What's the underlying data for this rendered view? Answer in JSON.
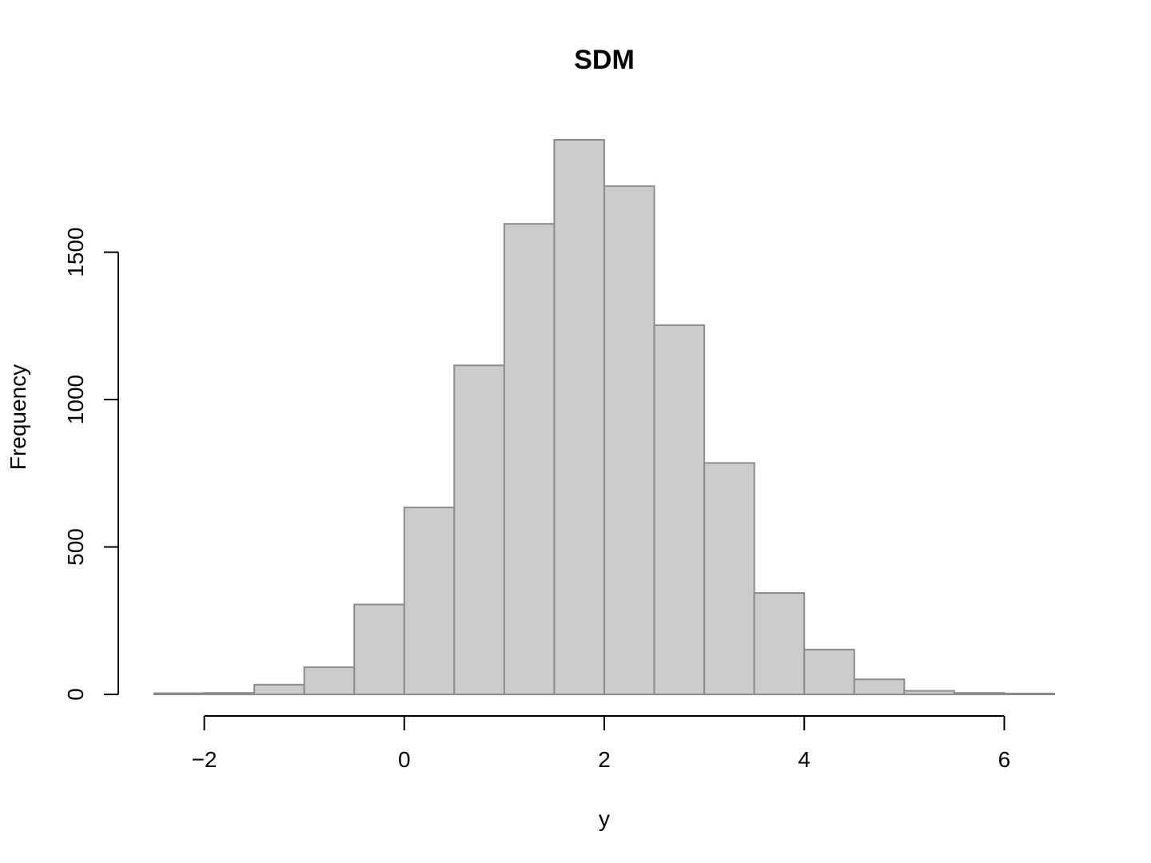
{
  "chart_data": {
    "type": "bar",
    "title": "SDM",
    "xlabel": "y",
    "ylabel": "Frequency",
    "bin_edges": [
      -2.5,
      -2.0,
      -1.5,
      -1.0,
      -0.5,
      0.0,
      0.5,
      1.0,
      1.5,
      2.0,
      2.5,
      3.0,
      3.5,
      4.0,
      4.5,
      5.0,
      5.5,
      6.0,
      6.5
    ],
    "values": [
      4,
      5,
      33,
      92,
      305,
      634,
      1116,
      1596,
      1881,
      1724,
      1252,
      785,
      344,
      152,
      51,
      12,
      5,
      3
    ],
    "x_ticks": [
      -2,
      0,
      2,
      4,
      6
    ],
    "x_tick_labels": [
      "−2",
      "0",
      "2",
      "4",
      "6"
    ],
    "y_ticks": [
      0,
      500,
      1000,
      1500
    ],
    "y_tick_labels": [
      "0",
      "500",
      "1000",
      "1500"
    ],
    "xlim": [
      -2.5,
      6.5
    ],
    "ylim": [
      0,
      1881
    ],
    "grid": false,
    "colors": {
      "bar_fill": "#cccccc",
      "bar_border": "#8c8c8c"
    }
  }
}
